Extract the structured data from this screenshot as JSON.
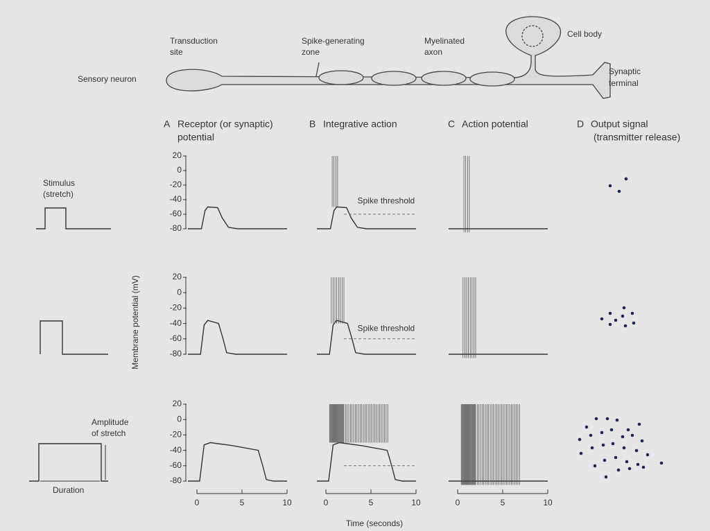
{
  "neuron": {
    "sensory_neuron": "Sensory neuron",
    "transduction_site": [
      "Transduction",
      "site"
    ],
    "spike_zone": [
      "Spike-generating",
      "zone"
    ],
    "myelinated_axon": [
      "Myelinated",
      "axon"
    ],
    "cell_body": "Cell body",
    "synaptic_terminal": [
      "Synaptic",
      "terminal"
    ]
  },
  "columns": [
    {
      "letter": "A",
      "title": [
        "Receptor (or synaptic)",
        "potential"
      ]
    },
    {
      "letter": "B",
      "title": [
        "Integrative action"
      ]
    },
    {
      "letter": "C",
      "title": [
        "Action potential"
      ]
    },
    {
      "letter": "D",
      "title": [
        "Output signal",
        "(transmitter release)"
      ]
    }
  ],
  "stimulus": [
    "Stimulus",
    "(stretch)"
  ],
  "amplitude": [
    "Amplitude",
    "of stretch"
  ],
  "duration": "Duration",
  "spike_threshold": "Spike threshold",
  "y_axis_label": "Membrane potential (mV)",
  "x_axis_label": "Time (seconds)",
  "yticks": [
    20,
    0,
    -20,
    -40,
    -60,
    -80
  ],
  "xticks": [
    0,
    5,
    10
  ]
}
